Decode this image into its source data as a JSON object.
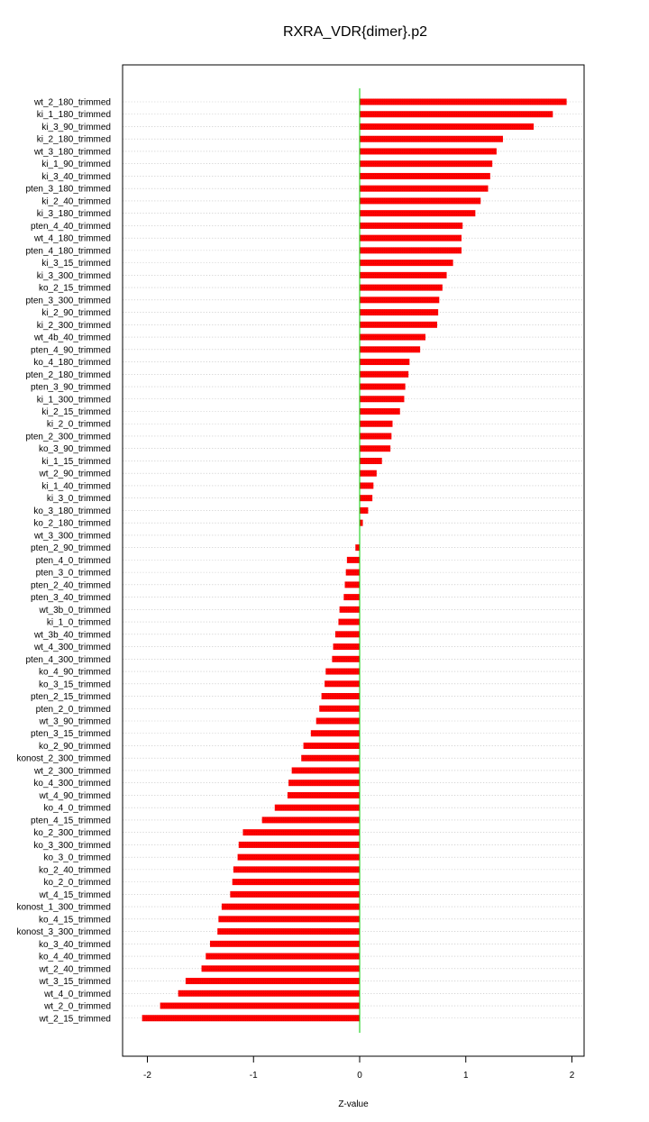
{
  "chart_data": {
    "type": "bar",
    "orientation": "horizontal",
    "title": "RXRA_VDR{dimer}.p2",
    "xlabel": "Z-value",
    "ylabel": "",
    "xlim": [
      -2.2,
      2.1
    ],
    "xticks": [
      -2,
      -1,
      0,
      1,
      2
    ],
    "xtick_labels": [
      "-2",
      "-1",
      "0",
      "1",
      "2"
    ],
    "grid": "dotted horizontal",
    "zero_line": true,
    "colors": {
      "bar": "#ff0000",
      "zero_line": "#00cc00",
      "grid": "#bbbbbb",
      "frame": "#000000"
    },
    "categories": [
      "wt_2_180_trimmed",
      "ki_1_180_trimmed",
      "ki_3_90_trimmed",
      "ki_2_180_trimmed",
      "wt_3_180_trimmed",
      "ki_1_90_trimmed",
      "ki_3_40_trimmed",
      "pten_3_180_trimmed",
      "ki_2_40_trimmed",
      "ki_3_180_trimmed",
      "pten_4_40_trimmed",
      "wt_4_180_trimmed",
      "pten_4_180_trimmed",
      "ki_3_15_trimmed",
      "ki_3_300_trimmed",
      "ko_2_15_trimmed",
      "pten_3_300_trimmed",
      "ki_2_90_trimmed",
      "ki_2_300_trimmed",
      "wt_4b_40_trimmed",
      "pten_4_90_trimmed",
      "ko_4_180_trimmed",
      "pten_2_180_trimmed",
      "pten_3_90_trimmed",
      "ki_1_300_trimmed",
      "ki_2_15_trimmed",
      "ki_2_0_trimmed",
      "pten_2_300_trimmed",
      "ko_3_90_trimmed",
      "ki_1_15_trimmed",
      "wt_2_90_trimmed",
      "ki_1_40_trimmed",
      "ki_3_0_trimmed",
      "ko_3_180_trimmed",
      "ko_2_180_trimmed",
      "wt_3_300_trimmed",
      "pten_2_90_trimmed",
      "pten_4_0_trimmed",
      "pten_3_0_trimmed",
      "pten_2_40_trimmed",
      "pten_3_40_trimmed",
      "wt_3b_0_trimmed",
      "ki_1_0_trimmed",
      "wt_3b_40_trimmed",
      "wt_4_300_trimmed",
      "pten_4_300_trimmed",
      "ko_4_90_trimmed",
      "ko_3_15_trimmed",
      "pten_2_15_trimmed",
      "pten_2_0_trimmed",
      "wt_3_90_trimmed",
      "pten_3_15_trimmed",
      "ko_2_90_trimmed",
      "konost_2_300_trimmed",
      "wt_2_300_trimmed",
      "ko_4_300_trimmed",
      "wt_4_90_trimmed",
      "ko_4_0_trimmed",
      "pten_4_15_trimmed",
      "ko_2_300_trimmed",
      "ko_3_300_trimmed",
      "ko_3_0_trimmed",
      "ko_2_40_trimmed",
      "ko_2_0_trimmed",
      "wt_4_15_trimmed",
      "konost_1_300_trimmed",
      "ko_4_15_trimmed",
      "konost_3_300_trimmed",
      "ko_3_40_trimmed",
      "ko_4_40_trimmed",
      "wt_2_40_trimmed",
      "wt_3_15_trimmed",
      "wt_4_0_trimmed",
      "wt_2_0_trimmed",
      "wt_2_15_trimmed"
    ],
    "values": [
      1.95,
      1.82,
      1.64,
      1.35,
      1.29,
      1.25,
      1.23,
      1.21,
      1.14,
      1.09,
      0.97,
      0.96,
      0.96,
      0.88,
      0.82,
      0.78,
      0.75,
      0.74,
      0.73,
      0.62,
      0.57,
      0.47,
      0.46,
      0.43,
      0.42,
      0.38,
      0.31,
      0.3,
      0.29,
      0.21,
      0.16,
      0.13,
      0.12,
      0.08,
      0.03,
      0.0,
      -0.04,
      -0.12,
      -0.13,
      -0.14,
      -0.15,
      -0.19,
      -0.2,
      -0.23,
      -0.25,
      -0.26,
      -0.32,
      -0.33,
      -0.36,
      -0.38,
      -0.41,
      -0.46,
      -0.53,
      -0.55,
      -0.64,
      -0.67,
      -0.68,
      -0.8,
      -0.92,
      -1.1,
      -1.14,
      -1.15,
      -1.19,
      -1.2,
      -1.22,
      -1.3,
      -1.33,
      -1.34,
      -1.41,
      -1.45,
      -1.49,
      -1.64,
      -1.71,
      -1.88,
      -2.05
    ]
  }
}
